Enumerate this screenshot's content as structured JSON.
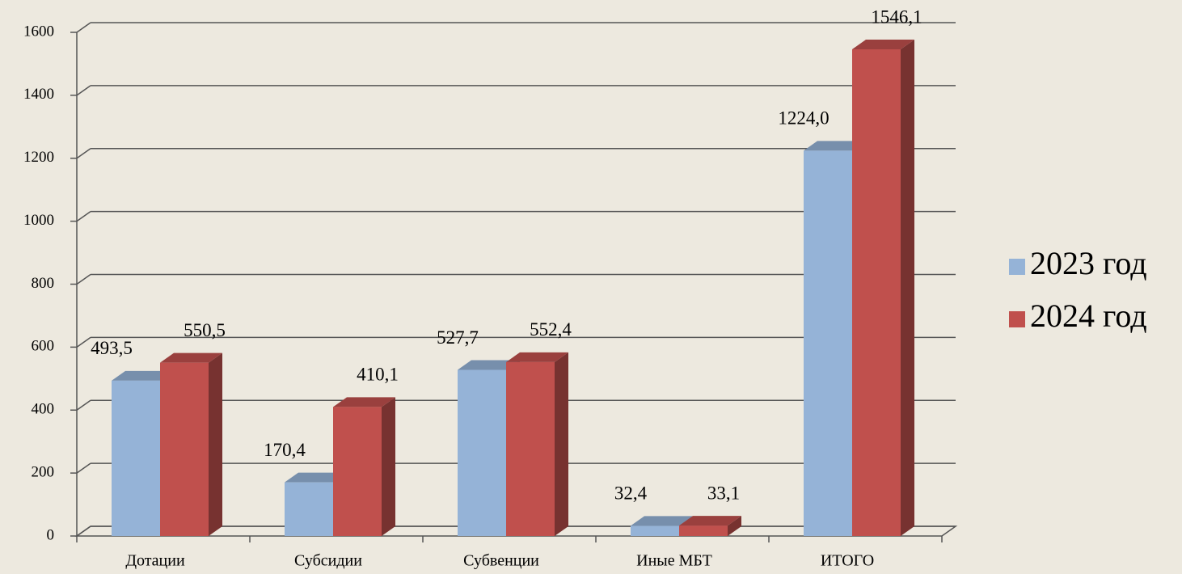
{
  "chart_data": {
    "type": "bar3d",
    "categories": [
      "Дотации",
      "Субсидии",
      "Субвенции",
      "Иные МБТ",
      "ИТОГО"
    ],
    "series": [
      {
        "name": "2023 год",
        "color": "#95b3d7",
        "values": [
          493.5,
          170.4,
          527.7,
          32.4,
          1224.0
        ],
        "value_labels": [
          "493,5",
          "170,4",
          "527,7",
          "32,4",
          "1224,0"
        ]
      },
      {
        "name": "2024 год",
        "color": "#c0504d",
        "values": [
          550.5,
          410.1,
          552.4,
          33.1,
          1546.1
        ],
        "value_labels": [
          "550,5",
          "410,1",
          "552,4",
          "33,1",
          "1546,1"
        ]
      }
    ],
    "ylim": [
      0,
      1600
    ],
    "yticks": [
      0,
      200,
      400,
      600,
      800,
      1000,
      1200,
      1400,
      1600
    ],
    "grid": true,
    "legend": "right"
  }
}
